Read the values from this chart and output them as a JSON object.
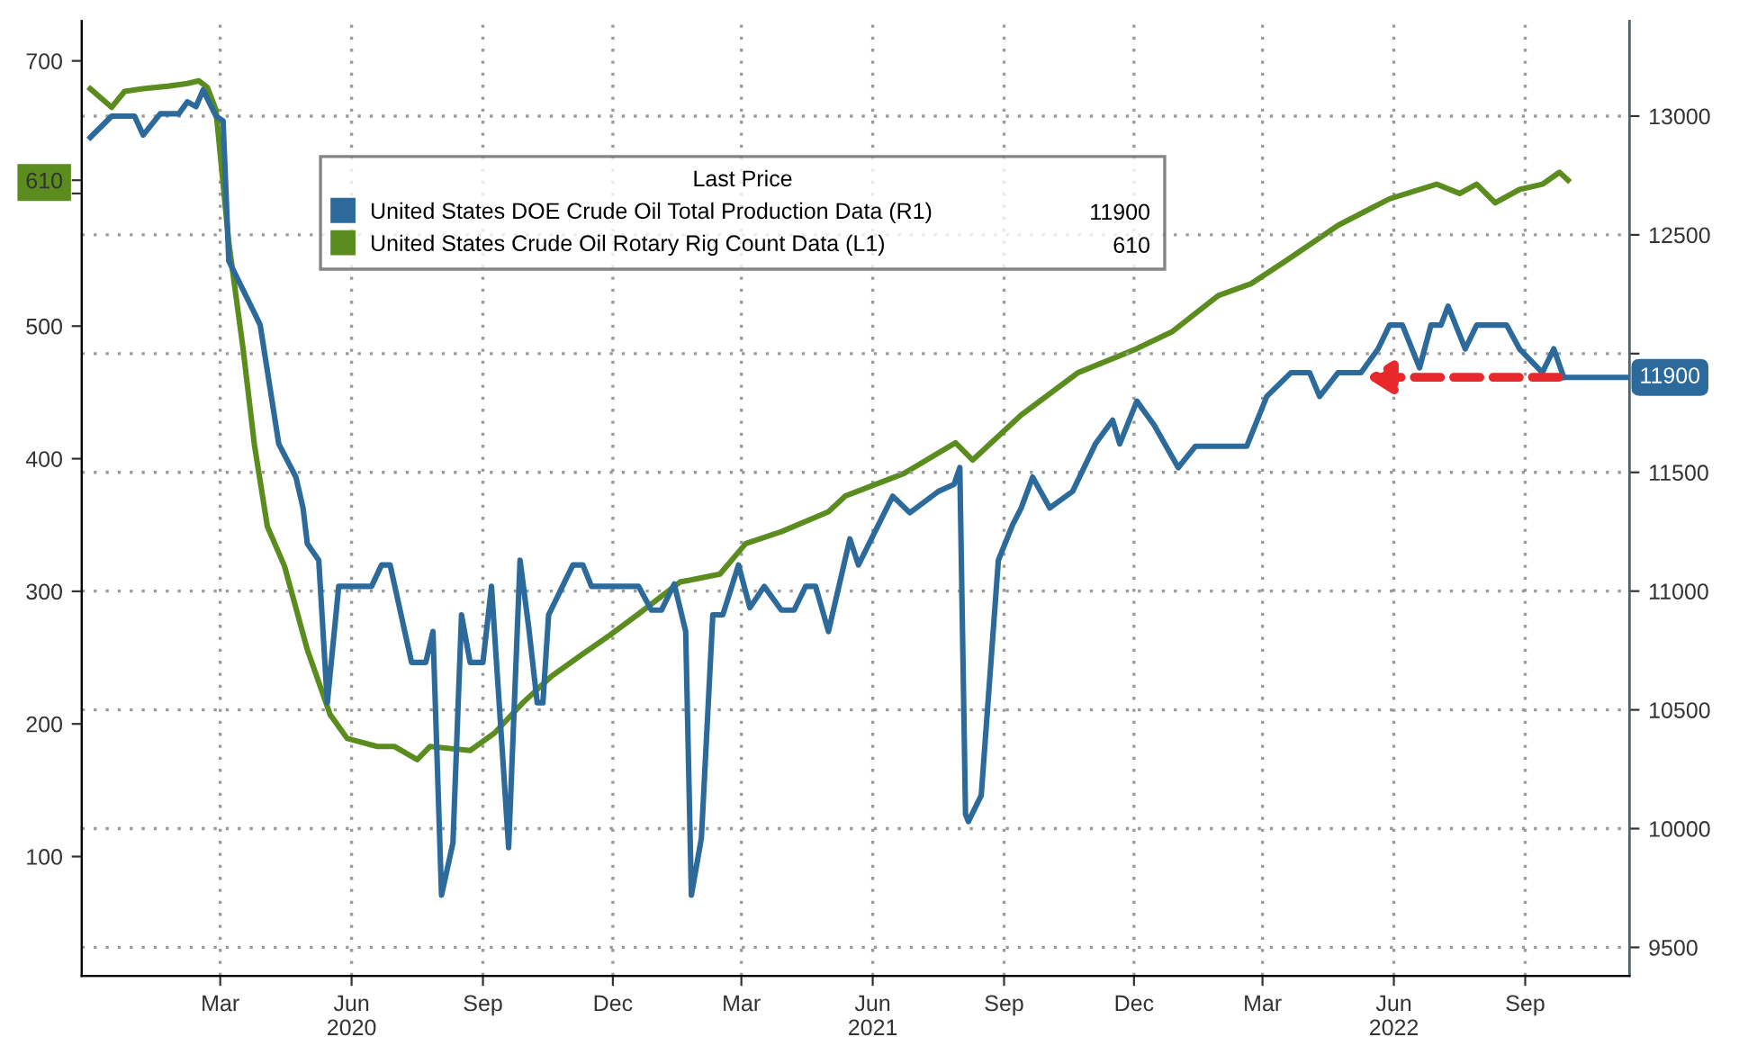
{
  "chart_data": {
    "type": "line",
    "legend_title": "Last Price",
    "legend": "top",
    "grid": true,
    "line_style": "solid",
    "xlim": [
      "2019-11-25",
      "2022-11-13"
    ],
    "xticks": [
      {
        "value": "2020-03-01",
        "label": "Mar"
      },
      {
        "value": "2020-06-01",
        "label": "Jun\n2020"
      },
      {
        "value": "2020-09-01",
        "label": "Sep"
      },
      {
        "value": "2020-12-01",
        "label": "Dec"
      },
      {
        "value": "2021-03-01",
        "label": "Mar"
      },
      {
        "value": "2021-06-01",
        "label": "Jun\n2021"
      },
      {
        "value": "2021-09-01",
        "label": "Sep"
      },
      {
        "value": "2021-12-01",
        "label": "Dec"
      },
      {
        "value": "2022-03-01",
        "label": "Mar"
      },
      {
        "value": "2022-06-01",
        "label": "Jun\n2022"
      },
      {
        "value": "2022-09-01",
        "label": "Sep"
      }
    ],
    "ylim": [
      10,
      730
    ],
    "yticks": [
      100,
      200,
      300,
      400,
      500,
      {
        "value": 600,
        "label": null
      },
      {
        "value": 610,
        "label": "610"
      },
      700
    ],
    "y2lim": [
      9380,
      13400
    ],
    "y2ticks": [
      9500,
      10000,
      10500,
      11000,
      11500,
      {
        "value": 12000,
        "label": null
      },
      12500,
      13000
    ],
    "series": [
      {
        "name": "United States DOE Crude Oil Total Production Data (R1)",
        "color": "#2b6a9b",
        "axis": "y2",
        "x": [
          "2019-12-01",
          "2019-12-16",
          "2020-01-01",
          "2020-01-07",
          "2020-01-19",
          "2020-02-01",
          "2020-02-07",
          "2020-02-13",
          "2020-02-18",
          "2020-02-27",
          "2020-03-03",
          "2020-03-07",
          "2020-03-25",
          "2020-03-29",
          "2020-04-11",
          "2020-04-23",
          "2020-04-28",
          "2020-05-01",
          "2020-05-09",
          "2020-05-15",
          "2020-05-23",
          "2020-06-15",
          "2020-06-22",
          "2020-06-28",
          "2020-07-13",
          "2020-07-23",
          "2020-07-28",
          "2020-08-03",
          "2020-08-11",
          "2020-08-17",
          "2020-08-23",
          "2020-09-01",
          "2020-09-07",
          "2020-09-19",
          "2020-09-27",
          "2020-10-03",
          "2020-10-09",
          "2020-10-13",
          "2020-10-17",
          "2020-11-03",
          "2020-11-10",
          "2020-11-16",
          "2020-12-19",
          "2020-12-28",
          "2021-01-04",
          "2021-01-13",
          "2021-01-21",
          "2021-01-25",
          "2021-02-01",
          "2021-02-09",
          "2021-02-16",
          "2021-02-27",
          "2021-03-07",
          "2021-03-17",
          "2021-03-29",
          "2021-04-07",
          "2021-04-15",
          "2021-04-22",
          "2021-05-01",
          "2021-05-16",
          "2021-05-22",
          "2021-06-15",
          "2021-06-27",
          "2021-07-17",
          "2021-07-28",
          "2021-08-01",
          "2021-08-05",
          "2021-08-07",
          "2021-08-16",
          "2021-08-28",
          "2021-09-07",
          "2021-09-13",
          "2021-09-21",
          "2021-10-03",
          "2021-10-19",
          "2021-11-04",
          "2021-11-16",
          "2021-11-21",
          "2021-12-03",
          "2021-12-15",
          "2022-01-01",
          "2022-01-13",
          "2022-02-18",
          "2022-03-04",
          "2022-03-21",
          "2022-04-03",
          "2022-04-10",
          "2022-04-23",
          "2022-05-09",
          "2022-05-21",
          "2022-05-29",
          "2022-06-07",
          "2022-06-19",
          "2022-06-27",
          "2022-07-04",
          "2022-07-09",
          "2022-07-21",
          "2022-07-29",
          "2022-08-19",
          "2022-08-28",
          "2022-09-13",
          "2022-09-21",
          "2022-09-28"
        ],
        "values": [
          12910,
          13000,
          13000,
          12920,
          13010,
          13010,
          13060,
          13040,
          13110,
          13000,
          12980,
          12390,
          12170,
          12120,
          11620,
          11480,
          11350,
          11200,
          11130,
          10530,
          11020,
          11020,
          11110,
          11110,
          10700,
          10700,
          10830,
          9720,
          9940,
          10900,
          10700,
          10700,
          11020,
          9920,
          11130,
          10850,
          10530,
          10530,
          10900,
          11110,
          11110,
          11020,
          11020,
          10920,
          10920,
          11030,
          10830,
          9720,
          9960,
          10900,
          10900,
          11110,
          10930,
          11020,
          10920,
          10920,
          11020,
          11020,
          10830,
          11220,
          11110,
          11400,
          11330,
          11420,
          11450,
          11520,
          10060,
          10030,
          10140,
          11130,
          11280,
          11350,
          11480,
          11350,
          11420,
          11620,
          11720,
          11620,
          11800,
          11700,
          11520,
          11610,
          11610,
          11820,
          11920,
          11920,
          11820,
          11920,
          11920,
          12020,
          12120,
          12120,
          11940,
          12120,
          12120,
          12200,
          12020,
          12120,
          12120,
          12020,
          11920,
          12020,
          11900
        ],
        "value_labels": [
          null,
          null,
          null,
          null,
          null,
          null,
          null,
          null,
          null,
          null,
          null,
          null,
          null,
          null,
          null,
          null,
          null,
          null,
          null,
          null,
          null,
          null,
          null,
          null,
          null,
          null,
          null,
          null,
          null,
          null,
          null,
          null,
          null,
          null,
          null,
          null,
          null,
          null,
          null,
          null,
          null,
          null,
          null,
          null,
          null,
          null,
          null,
          null,
          null,
          null,
          null,
          null,
          null,
          null,
          null,
          null,
          null,
          null,
          null,
          null,
          null,
          null,
          null,
          null,
          null,
          null,
          null,
          null,
          null,
          null,
          null,
          null,
          null,
          null,
          null,
          null,
          null,
          null,
          null,
          null,
          null,
          null,
          null,
          null,
          null,
          null,
          null,
          null,
          null,
          null,
          null,
          null,
          null,
          null,
          null,
          null,
          null,
          null,
          null,
          null,
          null,
          null,
          "11900"
        ]
      },
      {
        "name": "United States Crude Oil Rotary Rig Count Data (L1)",
        "color": "#5b8c1e",
        "axis": "y",
        "x": [
          "2019-12-01",
          "2019-12-16",
          "2019-12-25",
          "2020-01-07",
          "2020-01-25",
          "2020-02-07",
          "2020-02-15",
          "2020-02-21",
          "2020-02-27",
          "2020-03-07",
          "2020-03-17",
          "2020-03-25",
          "2020-04-03",
          "2020-04-15",
          "2020-05-01",
          "2020-05-17",
          "2020-05-29",
          "2020-06-19",
          "2020-07-01",
          "2020-07-17",
          "2020-07-26",
          "2020-08-23",
          "2020-09-09",
          "2020-09-29",
          "2020-10-19",
          "2020-11-09",
          "2020-11-29",
          "2020-12-19",
          "2021-01-17",
          "2021-02-14",
          "2021-03-04",
          "2021-03-29",
          "2021-05-01",
          "2021-05-13",
          "2021-06-23",
          "2021-07-29",
          "2021-08-10",
          "2021-09-13",
          "2021-10-23",
          "2021-12-03",
          "2021-12-28",
          "2022-01-29",
          "2022-02-21",
          "2022-03-17",
          "2022-04-23",
          "2022-05-29",
          "2022-07-01",
          "2022-07-17",
          "2022-07-29",
          "2022-08-11",
          "2022-08-28",
          "2022-09-13",
          "2022-09-25",
          "2022-10-01"
        ],
        "values": [
          679,
          665,
          677,
          679,
          681,
          683,
          685,
          680,
          663,
          563,
          483,
          410,
          349,
          319,
          256,
          207,
          189,
          183,
          183,
          173,
          183,
          180,
          193,
          216,
          236,
          252,
          267,
          283,
          307,
          313,
          336,
          345,
          360,
          372,
          389,
          412,
          399,
          433,
          465,
          483,
          496,
          523,
          532,
          549,
          576,
          596,
          607,
          600,
          607,
          593,
          603,
          607,
          616,
          610
        ]
      }
    ]
  }
}
